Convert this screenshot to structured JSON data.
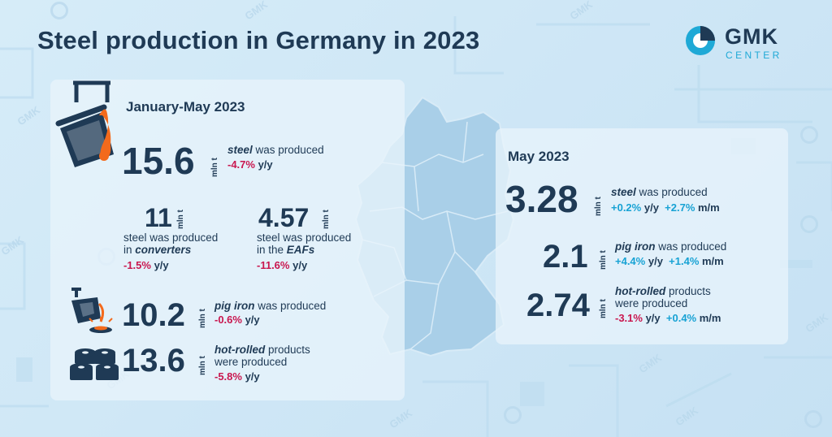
{
  "title": "Steel production in Germany in 2023",
  "logo": {
    "name": "GMK",
    "sub": "CENTER",
    "watermark": "GMK"
  },
  "colors": {
    "dark": "#1f3a55",
    "accent": "#1fa9d6",
    "negative": "#c9174f",
    "positive": "#17a2d4"
  },
  "icons": [
    "ladle-icon",
    "pig-iron-pour-icon",
    "steel-coils-icon",
    "germany-map-icon"
  ],
  "jan_may": {
    "period": "January-May 2023",
    "steel": {
      "value": "15.6",
      "unit": "mln t",
      "highlight": "steel",
      "text": " was produced",
      "change": "-4.7%",
      "change_unit": " y/y"
    },
    "converters": {
      "value": "11",
      "unit": "mln t",
      "line1": "steel was produced",
      "line2_pre": "in ",
      "highlight": "converters",
      "change": "-1.5%",
      "change_unit": " y/y"
    },
    "eaf": {
      "value": "4.57",
      "unit": "mln t",
      "line1": "steel was produced",
      "line2_pre": "in the ",
      "highlight": "EAFs",
      "change": "-11.6%",
      "change_unit": " y/y"
    },
    "pig_iron": {
      "value": "10.2",
      "unit": "mln t",
      "highlight": "pig iron",
      "text": " was produced",
      "change": "-0.6%",
      "change_unit": " y/y"
    },
    "hot_rolled": {
      "value": "13.6",
      "unit": "mln t",
      "highlight": "hot-rolled",
      "text": " products",
      "line2": "were produced",
      "change": "-5.8%",
      "change_unit": " y/y"
    }
  },
  "may": {
    "period": "May 2023",
    "steel": {
      "value": "3.28",
      "unit": "mln t",
      "highlight": "steel",
      "text": " was produced",
      "change_yy": "+0.2%",
      "yy": " y/y",
      "change_mm": "+2.7%",
      "mm": " m/m"
    },
    "pig_iron": {
      "value": "2.1",
      "unit": "mln t",
      "highlight": "pig iron",
      "text": " was produced",
      "change_yy": "+4.4%",
      "yy": " y/y",
      "change_mm": "+1.4%",
      "mm": " m/m"
    },
    "hot_rolled": {
      "value": "2.74",
      "unit": "mln t",
      "highlight": "hot-rolled",
      "text": " products",
      "line2": "were produced",
      "change_yy": "-3.1%",
      "yy": " y/y",
      "change_mm": "+0.4%",
      "mm": " m/m"
    }
  }
}
